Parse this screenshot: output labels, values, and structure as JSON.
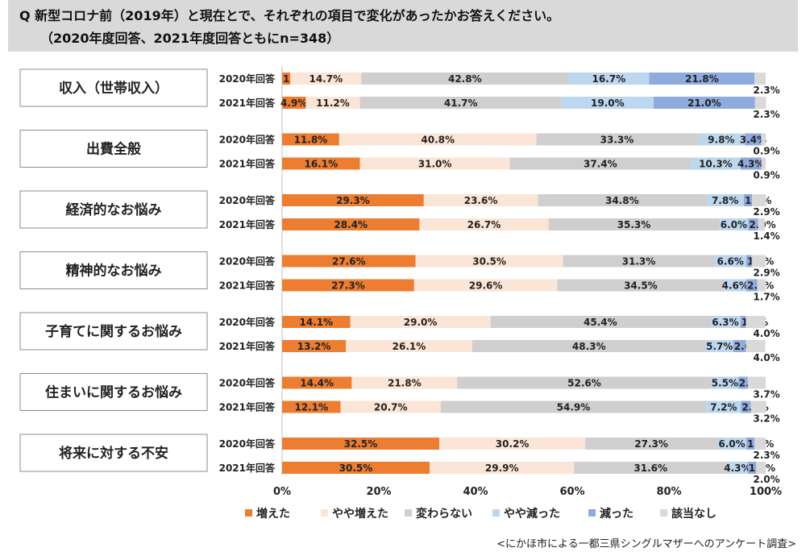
{
  "title": {
    "line1": "Q 新型コロナ前（2019年）と現在とで、それぞれの項目で変化があったかお答えください。",
    "line2": "（2020年度回答、2021年度回答ともにn=348）"
  },
  "source": "<にかほ市による一都三県シングルマザーへのアンケート調査>",
  "colors": [
    "#ed7d31",
    "#fbe5d6",
    "#d0cece",
    "#bdd7ee",
    "#8faadc",
    "#d9d9d9"
  ],
  "chart_data": {
    "type": "bar",
    "orientation": "horizontal-stacked-100",
    "xlim": [
      0,
      100
    ],
    "x_ticks": [
      "0%",
      "20%",
      "40%",
      "60%",
      "80%",
      "100%"
    ],
    "legend": [
      "増えた",
      "やや増えた",
      "変わらない",
      "やや減った",
      "減った",
      "該当なし"
    ],
    "legend_position": "bottom",
    "groups": [
      {
        "label": "収入（世帯収入）",
        "rows": [
          {
            "year": "2020年回答",
            "values": [
              1.7,
              14.7,
              42.8,
              16.7,
              21.8,
              2.3
            ]
          },
          {
            "year": "2021年回答",
            "values": [
              4.9,
              11.2,
              41.7,
              19.0,
              21.0,
              2.3
            ]
          }
        ]
      },
      {
        "label": "出費全般",
        "rows": [
          {
            "year": "2020年回答",
            "values": [
              11.8,
              40.8,
              33.3,
              9.8,
              3.4,
              0.9
            ]
          },
          {
            "year": "2021年回答",
            "values": [
              16.1,
              31.0,
              37.4,
              10.3,
              4.3,
              0.9
            ]
          }
        ]
      },
      {
        "label": "経済的なお悩み",
        "rows": [
          {
            "year": "2020年回答",
            "values": [
              29.3,
              23.6,
              34.8,
              7.8,
              1.7,
              2.9
            ]
          },
          {
            "year": "2021年回答",
            "values": [
              28.4,
              26.7,
              35.3,
              6.0,
              2.0,
              1.4
            ]
          }
        ]
      },
      {
        "label": "精神的なお悩み",
        "rows": [
          {
            "year": "2020年回答",
            "values": [
              27.6,
              30.5,
              31.3,
              6.6,
              1.1,
              2.9
            ]
          },
          {
            "year": "2021年回答",
            "values": [
              27.3,
              29.6,
              34.5,
              4.6,
              2.3,
              1.7
            ]
          }
        ]
      },
      {
        "label": "子育てに関するお悩み",
        "rows": [
          {
            "year": "2020年回答",
            "values": [
              14.1,
              29.0,
              45.4,
              6.3,
              1.1,
              4.0
            ]
          },
          {
            "year": "2021年回答",
            "values": [
              13.2,
              26.1,
              48.3,
              5.7,
              2.6,
              4.0
            ]
          }
        ]
      },
      {
        "label": "住まいに関するお悩み",
        "rows": [
          {
            "year": "2020年回答",
            "values": [
              14.4,
              21.8,
              52.6,
              5.5,
              2.0,
              3.7
            ]
          },
          {
            "year": "2021年回答",
            "values": [
              12.1,
              20.7,
              54.9,
              7.2,
              2.0,
              3.2
            ]
          }
        ]
      },
      {
        "label": "将来に対する不安",
        "rows": [
          {
            "year": "2020年回答",
            "values": [
              32.5,
              30.2,
              27.3,
              6.0,
              1.7,
              2.3
            ]
          },
          {
            "year": "2021年回答",
            "values": [
              30.5,
              29.9,
              31.6,
              4.3,
              1.7,
              2.0
            ]
          }
        ]
      }
    ]
  }
}
